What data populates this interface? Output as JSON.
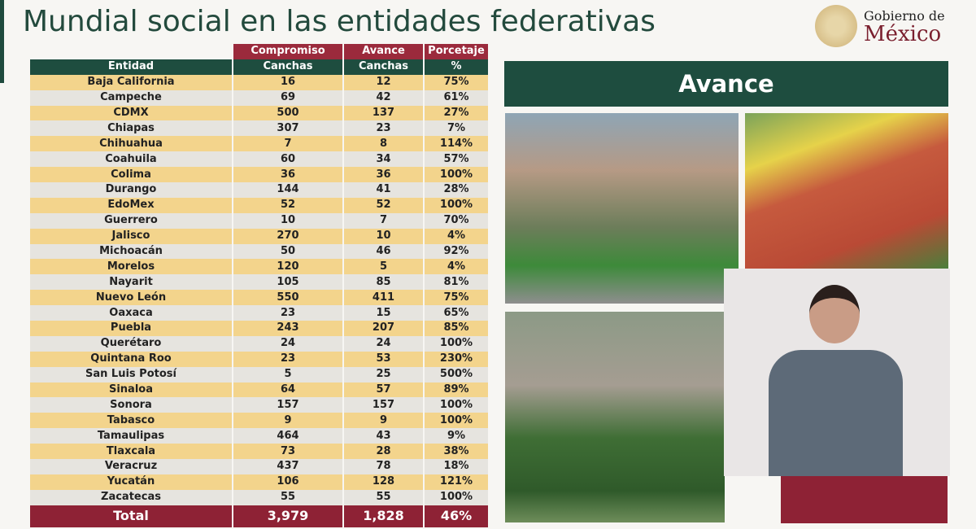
{
  "title": "Mundial social en las entidades federativas",
  "logo": {
    "line1": "Gobierno de",
    "line2": "México"
  },
  "table": {
    "group_headers": [
      "Compromiso",
      "Avance",
      "Porcetaje"
    ],
    "headers": [
      "Entidad",
      "Canchas",
      "Canchas",
      "%"
    ],
    "rows": [
      [
        "Baja California",
        "16",
        "12",
        "75%"
      ],
      [
        "Campeche",
        "69",
        "42",
        "61%"
      ],
      [
        "CDMX",
        "500",
        "137",
        "27%"
      ],
      [
        "Chiapas",
        "307",
        "23",
        "7%"
      ],
      [
        "Chihuahua",
        "7",
        "8",
        "114%"
      ],
      [
        "Coahuila",
        "60",
        "34",
        "57%"
      ],
      [
        "Colima",
        "36",
        "36",
        "100%"
      ],
      [
        "Durango",
        "144",
        "41",
        "28%"
      ],
      [
        "EdoMex",
        "52",
        "52",
        "100%"
      ],
      [
        "Guerrero",
        "10",
        "7",
        "70%"
      ],
      [
        "Jalisco",
        "270",
        "10",
        "4%"
      ],
      [
        "Michoacán",
        "50",
        "46",
        "92%"
      ],
      [
        "Morelos",
        "120",
        "5",
        "4%"
      ],
      [
        "Nayarit",
        "105",
        "85",
        "81%"
      ],
      [
        "Nuevo León",
        "550",
        "411",
        "75%"
      ],
      [
        "Oaxaca",
        "23",
        "15",
        "65%"
      ],
      [
        "Puebla",
        "243",
        "207",
        "85%"
      ],
      [
        "Querétaro",
        "24",
        "24",
        "100%"
      ],
      [
        "Quintana Roo",
        "23",
        "53",
        "230%"
      ],
      [
        "San Luis Potosí",
        "5",
        "25",
        "500%"
      ],
      [
        "Sinaloa",
        "64",
        "57",
        "89%"
      ],
      [
        "Sonora",
        "157",
        "157",
        "100%"
      ],
      [
        "Tabasco",
        "9",
        "9",
        "100%"
      ],
      [
        "Tamaulipas",
        "464",
        "43",
        "9%"
      ],
      [
        "Tlaxcala",
        "73",
        "28",
        "38%"
      ],
      [
        "Veracruz",
        "437",
        "78",
        "18%"
      ],
      [
        "Yucatán",
        "106",
        "128",
        "121%"
      ],
      [
        "Zacatecas",
        "55",
        "55",
        "100%"
      ]
    ],
    "total": [
      "Total",
      "3,979",
      "1,828",
      "46%"
    ]
  },
  "banner": "Avance",
  "colors": {
    "green": "#1e4d3f",
    "red": "#8e2235",
    "yellow": "#f3d48c",
    "gray": "#e6e4df"
  }
}
